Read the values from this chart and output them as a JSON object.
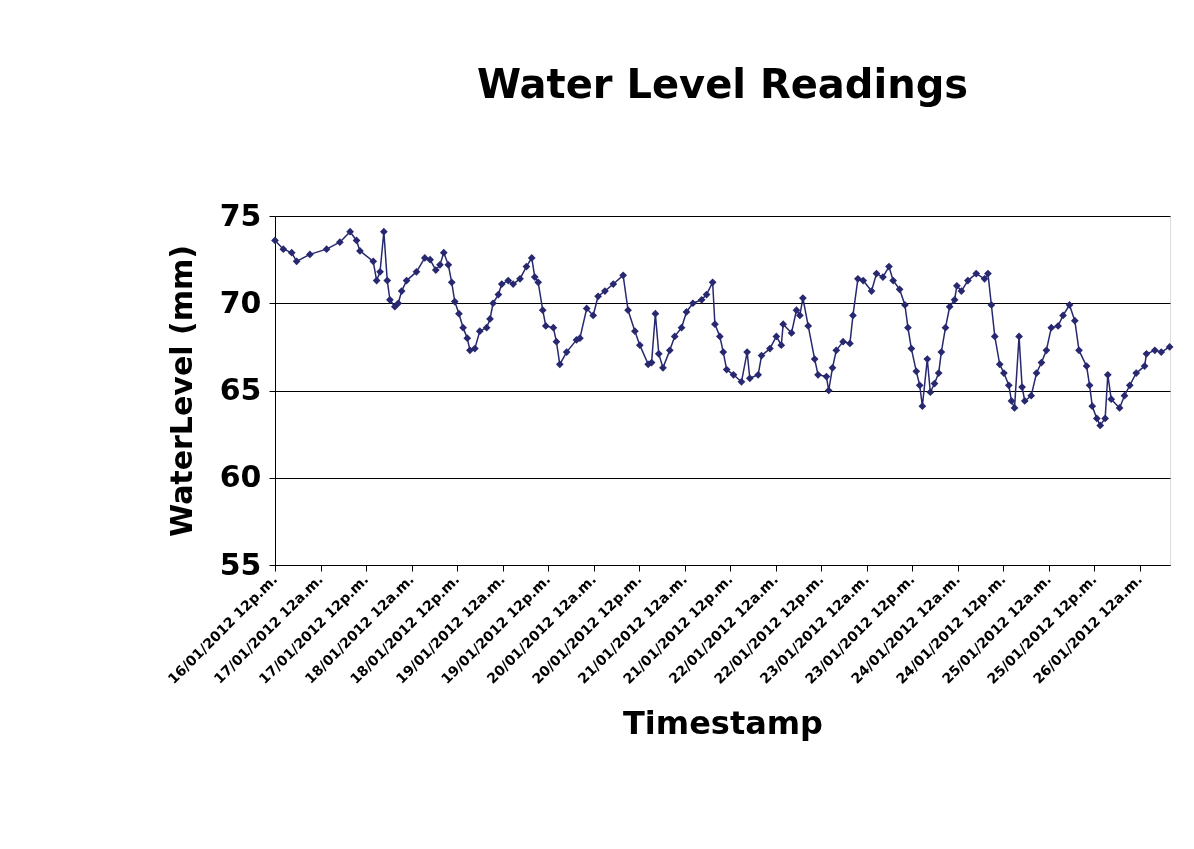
{
  "chart_data": {
    "type": "line",
    "title": "Water Level Readings",
    "xlabel": "Timestamp",
    "ylabel": "WaterLevel (mm)",
    "x": [
      "2012-01-16T12:00",
      "2012-01-16T14:12",
      "2012-01-16T16:24",
      "2012-01-16T17:42",
      "2012-01-16T21:12",
      "2012-01-17T01:36",
      "2012-01-17T05:06",
      "2012-01-17T07:48",
      "2012-01-17T09:30",
      "2012-01-17T10:24",
      "2012-01-17T13:54",
      "2012-01-17T14:48",
      "2012-01-17T15:42",
      "2012-01-17T16:42",
      "2012-01-17T17:36",
      "2012-01-17T18:18",
      "2012-01-17T19:36",
      "2012-01-17T20:30",
      "2012-01-17T21:24",
      "2012-01-17T22:42",
      "2012-01-18T01:18",
      "2012-01-18T03:30",
      "2012-01-18T04:54",
      "2012-01-18T06:24",
      "2012-01-18T07:30",
      "2012-01-18T08:30",
      "2012-01-18T09:42",
      "2012-01-18T10:36",
      "2012-01-18T11:24",
      "2012-01-18T12:30",
      "2012-01-18T13:36",
      "2012-01-18T14:42",
      "2012-01-18T15:24",
      "2012-01-18T16:42",
      "2012-01-18T18:00",
      "2012-01-18T19:48",
      "2012-01-18T20:42",
      "2012-01-18T21:30",
      "2012-01-18T22:54",
      "2012-01-18T23:48",
      "2012-01-19T01:30",
      "2012-01-19T02:48",
      "2012-01-19T04:36",
      "2012-01-19T06:18",
      "2012-01-19T07:42",
      "2012-01-19T08:30",
      "2012-01-19T09:24",
      "2012-01-19T10:36",
      "2012-01-19T11:24",
      "2012-01-19T13:24",
      "2012-01-19T14:12",
      "2012-01-19T15:06",
      "2012-01-19T16:54",
      "2012-01-19T19:30",
      "2012-01-19T20:24",
      "2012-01-19T22:12",
      "2012-01-19T23:54",
      "2012-01-20T01:12",
      "2012-01-20T03:00",
      "2012-01-20T05:12",
      "2012-01-20T07:48",
      "2012-01-20T09:06",
      "2012-01-20T10:54",
      "2012-01-20T12:12",
      "2012-01-20T14:24",
      "2012-01-20T15:18",
      "2012-01-20T16:18",
      "2012-01-20T17:12",
      "2012-01-20T18:18",
      "2012-01-20T20:06",
      "2012-01-20T21:24",
      "2012-01-20T23:12",
      "2012-01-21T00:30",
      "2012-01-21T02:12",
      "2012-01-21T04:30",
      "2012-01-21T05:48",
      "2012-01-21T07:24",
      "2012-01-21T08:00",
      "2012-01-21T09:18",
      "2012-01-21T10:12",
      "2012-01-21T11:06",
      "2012-01-21T12:54",
      "2012-01-21T15:00",
      "2012-01-21T16:30",
      "2012-01-21T17:12",
      "2012-01-21T19:24",
      "2012-01-21T20:18",
      "2012-01-21T22:30",
      "2012-01-22T00:12",
      "2012-01-22T01:30",
      "2012-01-22T02:00",
      "2012-01-22T04:12",
      "2012-01-22T05:30",
      "2012-01-22T06:24",
      "2012-01-22T07:12",
      "2012-01-22T08:36",
      "2012-01-22T10:18",
      "2012-01-22T11:12",
      "2012-01-22T13:24",
      "2012-01-22T14:00",
      "2012-01-22T15:00",
      "2012-01-22T16:00",
      "2012-01-22T17:48",
      "2012-01-22T19:36",
      "2012-01-22T20:24",
      "2012-01-22T21:42",
      "2012-01-22T23:06",
      "2012-01-23T01:18",
      "2012-01-23T02:36",
      "2012-01-23T04:18",
      "2012-01-23T05:54",
      "2012-01-23T07:00",
      "2012-01-23T08:42",
      "2012-01-23T10:06",
      "2012-01-23T10:54",
      "2012-01-23T11:48",
      "2012-01-23T13:06",
      "2012-01-23T14:00",
      "2012-01-23T14:42",
      "2012-01-23T16:00",
      "2012-01-23T16:48",
      "2012-01-23T17:54",
      "2012-01-23T19:00",
      "2012-01-23T19:42",
      "2012-01-23T20:48",
      "2012-01-23T21:54",
      "2012-01-23T23:12",
      "2012-01-23T23:48",
      "2012-01-24T01:00",
      "2012-01-24T02:42",
      "2012-01-24T04:54",
      "2012-01-24T07:06",
      "2012-01-24T08:00",
      "2012-01-24T08:54",
      "2012-01-24T09:48",
      "2012-01-24T11:06",
      "2012-01-24T12:12",
      "2012-01-24T13:30",
      "2012-01-24T14:12",
      "2012-01-24T15:00",
      "2012-01-24T16:12",
      "2012-01-24T17:00",
      "2012-01-24T17:42",
      "2012-01-24T19:24",
      "2012-01-24T20:48",
      "2012-01-24T22:06",
      "2012-01-24T23:24",
      "2012-01-25T00:42",
      "2012-01-25T02:30",
      "2012-01-25T03:48",
      "2012-01-25T05:30",
      "2012-01-25T06:54",
      "2012-01-25T08:00",
      "2012-01-25T10:00",
      "2012-01-25T10:48",
      "2012-01-25T11:30",
      "2012-01-25T12:42",
      "2012-01-25T13:36",
      "2012-01-25T14:54",
      "2012-01-25T15:36",
      "2012-01-25T16:30",
      "2012-01-25T18:42",
      "2012-01-25T20:00",
      "2012-01-25T21:24",
      "2012-01-25T23:06",
      "2012-01-26T01:18",
      "2012-01-26T01:48",
      "2012-01-26T04:00",
      "2012-01-26T05:42",
      "2012-01-26T07:54"
    ],
    "series": [
      {
        "color": "#27286f",
        "values": [
          73.6,
          73.1,
          72.9,
          72.4,
          72.8,
          73.1,
          73.5,
          74.1,
          73.6,
          73.0,
          72.4,
          71.3,
          71.8,
          74.1,
          71.3,
          70.2,
          69.8,
          70.0,
          70.7,
          71.3,
          71.8,
          72.6,
          72.5,
          71.9,
          72.2,
          72.9,
          72.2,
          71.2,
          70.1,
          69.4,
          68.6,
          68.0,
          67.3,
          67.4,
          68.4,
          68.6,
          69.1,
          70.0,
          70.5,
          71.1,
          71.3,
          71.1,
          71.4,
          72.1,
          72.6,
          71.5,
          71.2,
          69.6,
          68.7,
          68.6,
          67.8,
          66.5,
          67.2,
          67.9,
          68.0,
          69.7,
          69.3,
          70.4,
          70.7,
          71.1,
          71.6,
          69.6,
          68.4,
          67.6,
          66.5,
          66.6,
          69.4,
          67.1,
          66.3,
          67.3,
          68.1,
          68.6,
          69.5,
          70.0,
          70.2,
          70.5,
          71.2,
          68.8,
          68.1,
          67.2,
          66.2,
          65.9,
          65.5,
          67.2,
          65.7,
          65.9,
          67.0,
          67.4,
          68.1,
          67.6,
          68.8,
          68.3,
          69.6,
          69.3,
          70.3,
          68.7,
          66.8,
          65.9,
          65.8,
          65.0,
          66.3,
          67.3,
          67.8,
          67.7,
          69.3,
          71.4,
          71.3,
          70.7,
          71.7,
          71.5,
          72.1,
          71.3,
          70.8,
          69.9,
          68.6,
          67.4,
          66.1,
          65.3,
          64.1,
          66.8,
          64.9,
          65.4,
          66.0,
          67.2,
          68.6,
          69.8,
          70.2,
          71.0,
          70.7,
          71.3,
          71.7,
          71.4,
          71.7,
          69.9,
          68.1,
          66.5,
          66.0,
          65.3,
          64.4,
          64.0,
          68.1,
          65.2,
          64.4,
          64.7,
          66.0,
          66.6,
          67.3,
          68.6,
          68.7,
          69.3,
          69.9,
          69.0,
          67.3,
          66.4,
          65.3,
          64.1,
          63.4,
          63.0,
          63.4,
          65.9,
          64.5,
          64.0,
          64.7,
          65.3,
          66.0,
          66.4,
          67.1,
          67.3,
          67.2,
          67.5
        ]
      }
    ],
    "xlim": [
      "2012-01-16T12:00",
      "2012-01-26T08:00"
    ],
    "xticks": [
      {
        "value": "2012-01-16T12:00",
        "label": "16/01/2012 12p.m."
      },
      {
        "value": "2012-01-17T00:00",
        "label": "17/01/2012 12a.m."
      },
      {
        "value": "2012-01-17T12:00",
        "label": "17/01/2012 12p.m."
      },
      {
        "value": "2012-01-18T00:00",
        "label": "18/01/2012 12a.m."
      },
      {
        "value": "2012-01-18T12:00",
        "label": "18/01/2012 12p.m."
      },
      {
        "value": "2012-01-19T00:00",
        "label": "19/01/2012 12a.m."
      },
      {
        "value": "2012-01-19T12:00",
        "label": "19/01/2012 12p.m."
      },
      {
        "value": "2012-01-20T00:00",
        "label": "20/01/2012 12a.m."
      },
      {
        "value": "2012-01-20T12:00",
        "label": "20/01/2012 12p.m."
      },
      {
        "value": "2012-01-21T00:00",
        "label": "21/01/2012 12a.m."
      },
      {
        "value": "2012-01-21T12:00",
        "label": "21/01/2012 12p.m."
      },
      {
        "value": "2012-01-22T00:00",
        "label": "22/01/2012 12a.m."
      },
      {
        "value": "2012-01-22T12:00",
        "label": "22/01/2012 12p.m."
      },
      {
        "value": "2012-01-23T00:00",
        "label": "23/01/2012 12a.m."
      },
      {
        "value": "2012-01-23T12:00",
        "label": "23/01/2012 12p.m."
      },
      {
        "value": "2012-01-24T00:00",
        "label": "24/01/2012 12a.m."
      },
      {
        "value": "2012-01-24T12:00",
        "label": "24/01/2012 12p.m."
      },
      {
        "value": "2012-01-25T00:00",
        "label": "25/01/2012 12a.m."
      },
      {
        "value": "2012-01-25T12:00",
        "label": "25/01/2012 12p.m."
      },
      {
        "value": "2012-01-26T00:00",
        "label": "26/01/2012 12a.m."
      }
    ],
    "ylim": [
      55,
      75
    ],
    "yticks": [
      55,
      60,
      65,
      70,
      75
    ],
    "grid": "y",
    "marker": "diamond",
    "line_style": "solid"
  }
}
